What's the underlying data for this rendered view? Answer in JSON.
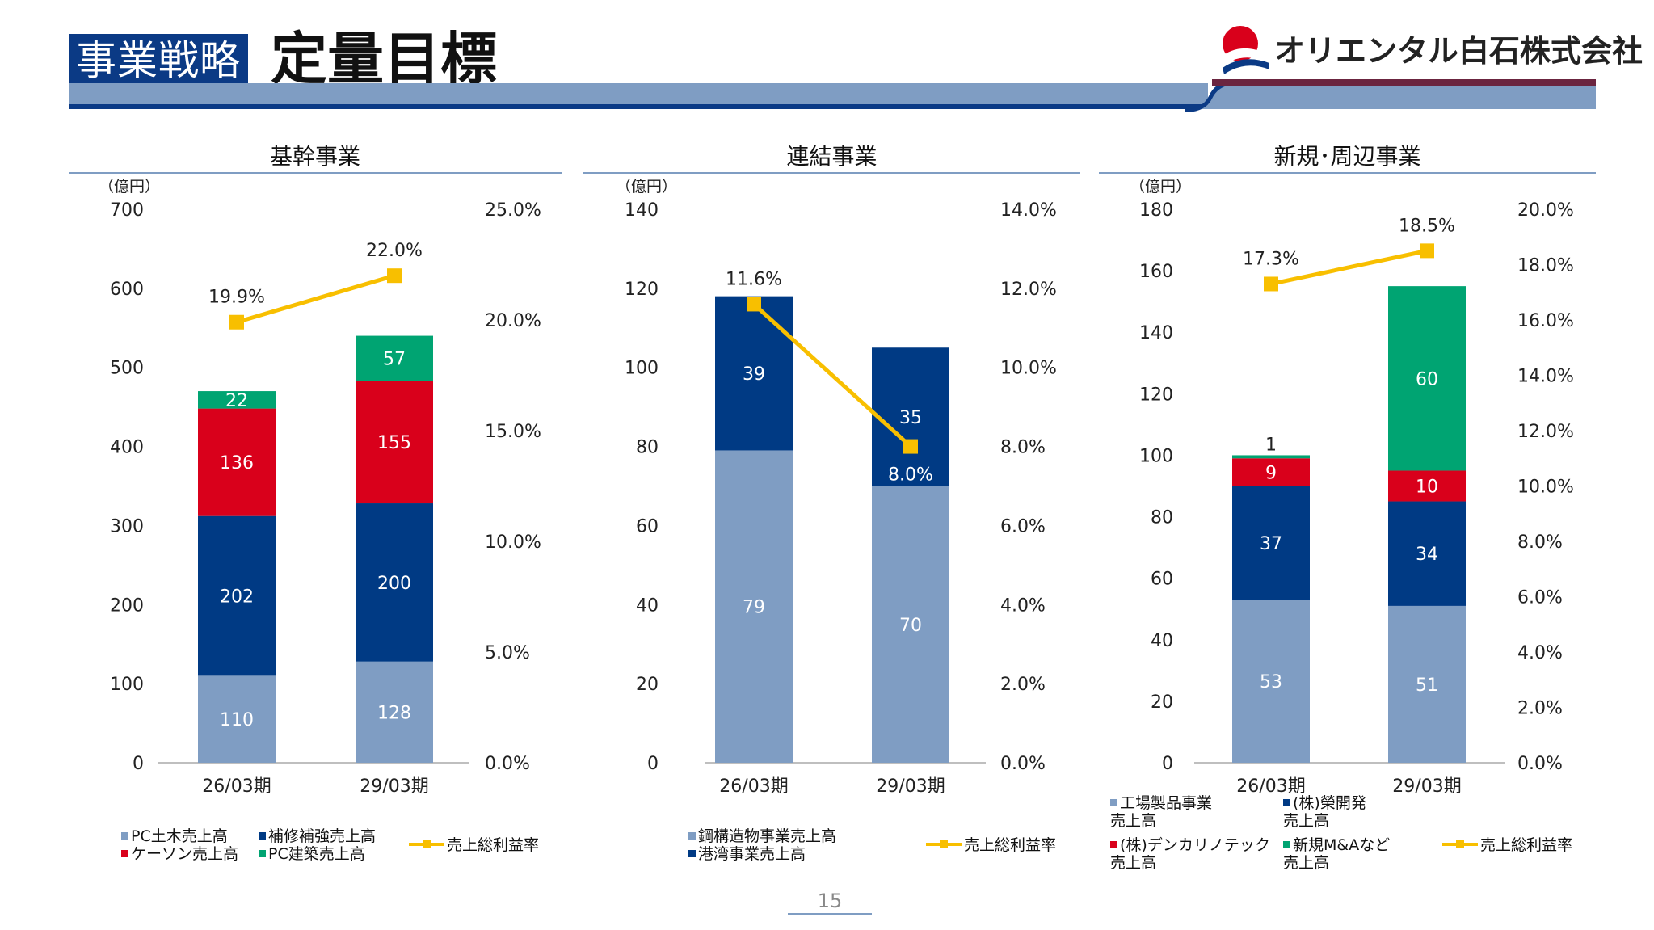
{
  "header": {
    "badge": "事業戦略",
    "title": "定量目標"
  },
  "company": {
    "name": "オリエンタル白石株式会社"
  },
  "colors": {
    "navy": "#003a84",
    "light_blue": "#7f9dc3",
    "red": "#d9001b",
    "green": "#00a472",
    "yellow": "#f8bf00",
    "maroon": "#6b2540"
  },
  "footer": {
    "page_number": "15"
  },
  "chart_data": [
    {
      "type": "bar",
      "stacked": true,
      "title": "基幹事業",
      "y_unit": "（億円）",
      "categories": [
        "26/03期",
        "29/03期"
      ],
      "ylim": [
        0,
        700
      ],
      "yticks": [
        "0",
        "100",
        "200",
        "300",
        "400",
        "500",
        "600",
        "700"
      ],
      "y2lim": [
        0,
        25
      ],
      "y2ticks": [
        "0.0%",
        "5.0%",
        "10.0%",
        "15.0%",
        "20.0%",
        "25.0%"
      ],
      "series": [
        {
          "name": "PC土木売上高",
          "color": "#7f9dc3",
          "values": [
            110,
            128
          ]
        },
        {
          "name": "補修補強売上高",
          "color": "#003a84",
          "values": [
            202,
            200
          ]
        },
        {
          "name": "ケーソン売上高",
          "color": "#d9001b",
          "values": [
            136,
            155
          ]
        },
        {
          "name": "PC建築売上高",
          "color": "#00a472",
          "values": [
            22,
            57
          ]
        }
      ],
      "line": {
        "name": "売上総利益率",
        "color": "#f8bf00",
        "values": [
          19.9,
          22.0
        ],
        "labels": [
          "19.9%",
          "22.0%"
        ]
      },
      "legend_placement": "bottom"
    },
    {
      "type": "bar",
      "stacked": true,
      "title": "連結事業",
      "y_unit": "（億円）",
      "categories": [
        "26/03期",
        "29/03期"
      ],
      "ylim": [
        0,
        140
      ],
      "yticks": [
        "0",
        "20",
        "40",
        "60",
        "80",
        "100",
        "120",
        "140"
      ],
      "y2lim": [
        0,
        14
      ],
      "y2ticks": [
        "0.0%",
        "2.0%",
        "4.0%",
        "6.0%",
        "8.0%",
        "10.0%",
        "12.0%",
        "14.0%"
      ],
      "series": [
        {
          "name": "鋼構造物事業売上高",
          "color": "#7f9dc3",
          "values": [
            79,
            70
          ]
        },
        {
          "name": "港湾事業売上高",
          "color": "#003a84",
          "values": [
            39,
            35
          ]
        }
      ],
      "line": {
        "name": "売上総利益率",
        "color": "#f8bf00",
        "values": [
          11.6,
          8.0
        ],
        "labels": [
          "11.6%",
          "8.0%"
        ]
      },
      "legend_placement": "bottom"
    },
    {
      "type": "bar",
      "stacked": true,
      "title": "新規･周辺事業",
      "y_unit": "（億円）",
      "categories": [
        "26/03期",
        "29/03期"
      ],
      "ylim": [
        0,
        180
      ],
      "yticks": [
        "0",
        "20",
        "40",
        "60",
        "80",
        "100",
        "120",
        "140",
        "160",
        "180"
      ],
      "y2lim": [
        0,
        20
      ],
      "y2ticks": [
        "0.0%",
        "2.0%",
        "4.0%",
        "6.0%",
        "8.0%",
        "10.0%",
        "12.0%",
        "14.0%",
        "16.0%",
        "18.0%",
        "20.0%"
      ],
      "series": [
        {
          "name": "工場製品事業売上高",
          "legend_lines": [
            "工場製品事業",
            "売上高"
          ],
          "color": "#7f9dc3",
          "values": [
            53,
            51
          ]
        },
        {
          "name": "(株)榮開発売上高",
          "legend_lines": [
            "(株)榮開発",
            "売上高"
          ],
          "color": "#003a84",
          "values": [
            37,
            34
          ]
        },
        {
          "name": "(株)デンカリノテック売上高",
          "legend_lines": [
            "(株)デンカリノテック",
            "売上高"
          ],
          "color": "#d9001b",
          "values": [
            9,
            10
          ]
        },
        {
          "name": "新規M&Aなど売上高",
          "legend_lines": [
            "新規M&Aなど",
            "売上高"
          ],
          "color": "#00a472",
          "values": [
            1,
            60
          ]
        }
      ],
      "line": {
        "name": "売上総利益率",
        "color": "#f8bf00",
        "values": [
          17.3,
          18.5
        ],
        "labels": [
          "17.3%",
          "18.5%"
        ]
      },
      "legend_placement": "bottom"
    }
  ]
}
